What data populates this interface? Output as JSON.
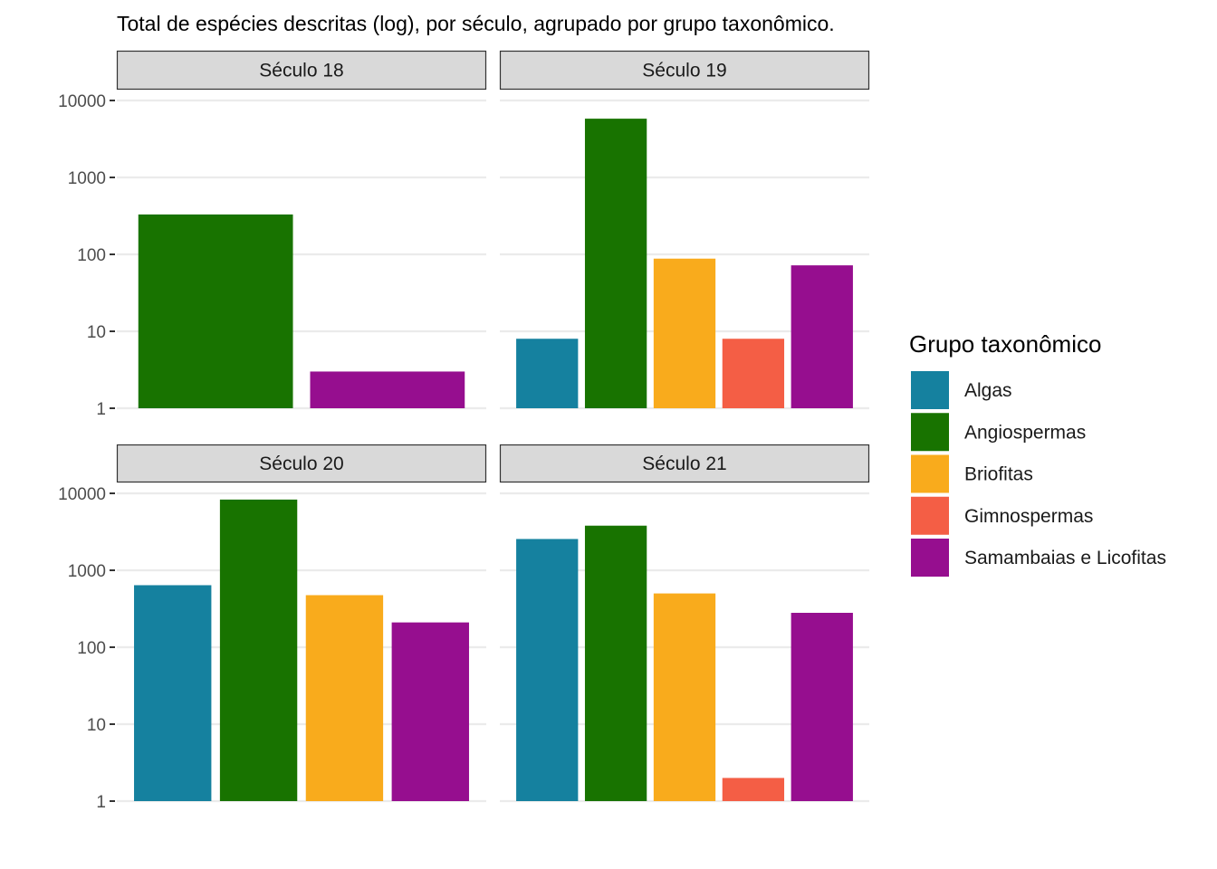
{
  "chart_data": {
    "type": "bar",
    "title": "Total de espécies descritas (log), por século, agrupado por grupo taxonômico.",
    "xlabel": "",
    "ylabel": "",
    "y_scale": "log10",
    "ylim": [
      1,
      10000
    ],
    "y_ticks": [
      "1",
      "10",
      "100",
      "1000",
      "10000"
    ],
    "grid": true,
    "legend": {
      "title": "Grupo taxonômico",
      "placement": "right",
      "entries": [
        {
          "name": "Algas",
          "color": "#15819f"
        },
        {
          "name": "Angiospermas",
          "color": "#187300"
        },
        {
          "name": "Briofitas",
          "color": "#f9ab1c"
        },
        {
          "name": "Gimnospermas",
          "color": "#f45e45"
        },
        {
          "name": "Samambaias e Licofitas",
          "color": "#960e8f"
        }
      ]
    },
    "panels": [
      {
        "label": "Século 18",
        "bars": [
          {
            "group": "Angiospermas",
            "value": 330
          },
          {
            "group": "Samambaias e Licofitas",
            "value": 3
          }
        ]
      },
      {
        "label": "Século 19",
        "bars": [
          {
            "group": "Algas",
            "value": 8
          },
          {
            "group": "Angiospermas",
            "value": 5800
          },
          {
            "group": "Briofitas",
            "value": 88
          },
          {
            "group": "Gimnospermas",
            "value": 8
          },
          {
            "group": "Samambaias e Licofitas",
            "value": 72
          }
        ]
      },
      {
        "label": "Século 20",
        "bars": [
          {
            "group": "Algas",
            "value": 640
          },
          {
            "group": "Angiospermas",
            "value": 8300
          },
          {
            "group": "Briofitas",
            "value": 475
          },
          {
            "group": "Samambaias e Licofitas",
            "value": 210
          }
        ]
      },
      {
        "label": "Século 21",
        "bars": [
          {
            "group": "Algas",
            "value": 2550
          },
          {
            "group": "Angiospermas",
            "value": 3800
          },
          {
            "group": "Briofitas",
            "value": 500
          },
          {
            "group": "Gimnospermas",
            "value": 2
          },
          {
            "group": "Samambaias e Licofitas",
            "value": 280
          }
        ]
      }
    ]
  }
}
